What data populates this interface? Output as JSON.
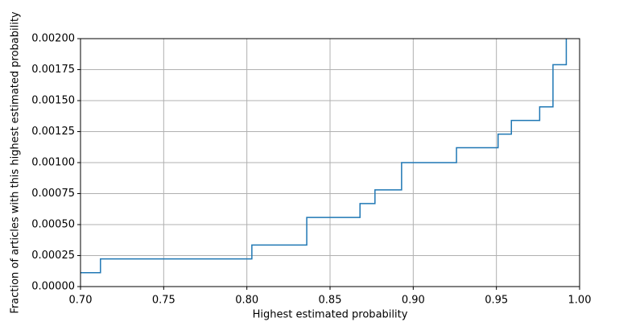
{
  "chart_data": {
    "type": "step",
    "xlabel": "Highest estimated probability",
    "ylabel": "Fraction of articles with this highest estimated probability",
    "x": [
      0.7,
      0.712,
      0.803,
      0.836,
      0.868,
      0.877,
      0.893,
      0.926,
      0.951,
      0.959,
      0.976,
      0.984,
      0.992
    ],
    "series": [
      {
        "color": "#1f77b4",
        "values": [
          0.000112,
          0.000223,
          0.000335,
          0.000558,
          0.00067,
          0.00078,
          0.001,
          0.00112,
          0.00123,
          0.00134,
          0.00145,
          0.00179,
          0.00201
        ]
      }
    ],
    "xlim": [
      0.7,
      1.0
    ],
    "xticks": [
      {
        "value": 0.7,
        "label": "0.70"
      },
      0.75,
      {
        "value": 0.8,
        "label": "0.80"
      },
      0.85,
      {
        "value": 0.9,
        "label": "0.90"
      },
      0.95,
      {
        "value": 1.0,
        "label": "1.00"
      }
    ],
    "ylim": [
      0,
      0.002
    ],
    "yticks": [
      {
        "value": 0,
        "label": "0.00000"
      },
      0.00025,
      {
        "value": 0.0005,
        "label": "0.00050"
      },
      0.00075,
      {
        "value": 0.001,
        "label": "0.00100"
      },
      0.00125,
      {
        "value": 0.0015,
        "label": "0.00150"
      },
      0.00175,
      {
        "value": 0.002,
        "label": "0.00200"
      }
    ],
    "grid": true
  }
}
